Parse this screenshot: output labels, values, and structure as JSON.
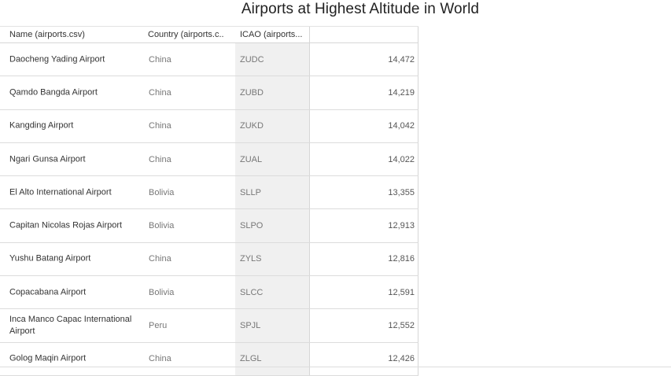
{
  "title": "Airports at Highest Altitude in World",
  "columns": {
    "name": "Name (airports.csv)",
    "country": "Country (airports.c..",
    "icao": "ICAO (airports..."
  },
  "chart_data": {
    "type": "table",
    "title": "Airports at Highest Altitude in World",
    "columns": [
      "Name (airports.csv)",
      "Country (airports.c..",
      "ICAO (airports...",
      ""
    ],
    "rows": [
      {
        "name": "Daocheng Yading Airport",
        "country": "China",
        "icao": "ZUDC",
        "value": "14,472"
      },
      {
        "name": "Qamdo Bangda Airport",
        "country": "China",
        "icao": "ZUBD",
        "value": "14,219"
      },
      {
        "name": "Kangding Airport",
        "country": "China",
        "icao": "ZUKD",
        "value": "14,042"
      },
      {
        "name": "Ngari Gunsa Airport",
        "country": "China",
        "icao": "ZUAL",
        "value": "14,022"
      },
      {
        "name": "El Alto International Airport",
        "country": "Bolivia",
        "icao": "SLLP",
        "value": "13,355"
      },
      {
        "name": "Capitan Nicolas Rojas Airport",
        "country": "Bolivia",
        "icao": "SLPO",
        "value": "12,913"
      },
      {
        "name": "Yushu Batang Airport",
        "country": "China",
        "icao": "ZYLS",
        "value": "12,816"
      },
      {
        "name": "Copacabana Airport",
        "country": "Bolivia",
        "icao": "SLCC",
        "value": "12,591"
      },
      {
        "name": "Inca Manco Capac International Airport",
        "country": "Peru",
        "icao": "SPJL",
        "value": "12,552"
      },
      {
        "name": "Golog Maqin Airport",
        "country": "China",
        "icao": "ZLGL",
        "value": "12,426"
      }
    ]
  }
}
